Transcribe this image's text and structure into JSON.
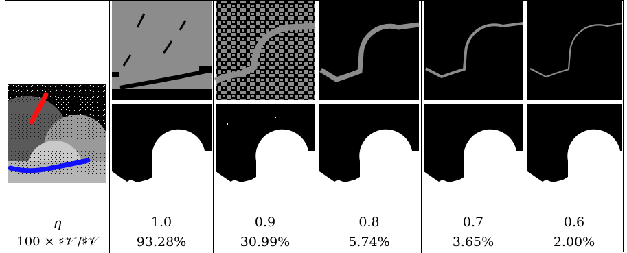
{
  "table": {
    "row_eta_label": "η",
    "row_ratio_label": "100 × ♯𝒱′/♯𝒱",
    "eta_values": [
      "1.0",
      "0.9",
      "0.8",
      "0.7",
      "0.6"
    ],
    "ratio_values": [
      "93.28%",
      "30.99%",
      "5.74%",
      "3.65%",
      "2.00%"
    ]
  },
  "images": {
    "input": "noisy input image with red and blue scribbles",
    "top_row": "reduced graph vertex maps for each eta",
    "bottom_row": "segmentation results for each eta"
  }
}
